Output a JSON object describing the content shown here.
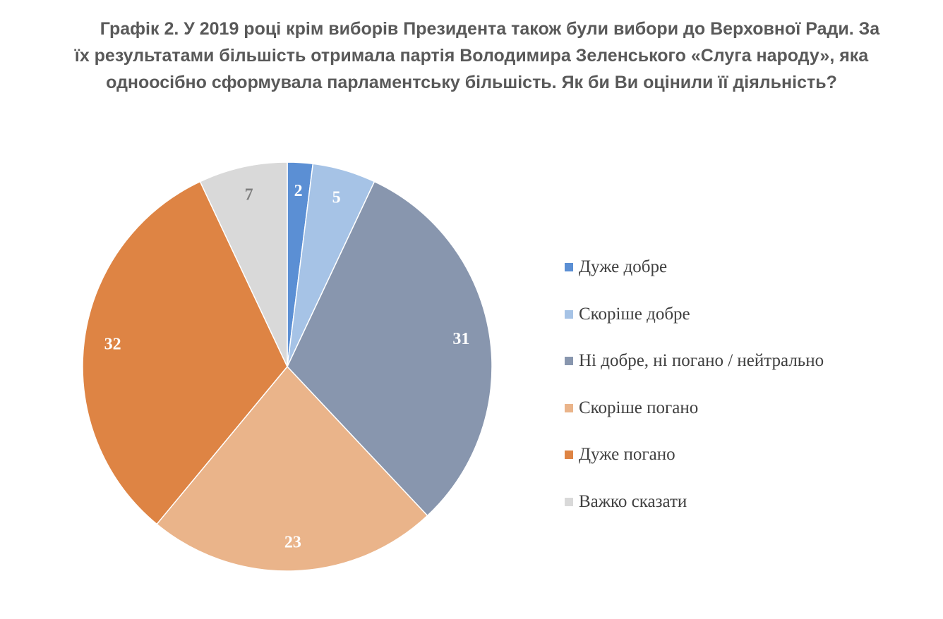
{
  "title": {
    "line1": "Графік 2. У 2019 році крім виборів Президента також були вибори до Верховної Ради. За",
    "line2": "їх результатами більшість отримала партія Володимира Зеленського «Слуга народу», яка",
    "line3": "одноосібно сформувала парламентську більшість. Як би Ви оцінили її діяльність?"
  },
  "chart_data": {
    "type": "pie",
    "categories": [
      "Дуже добре",
      "Скоріше добре",
      "Ні добре, ні погано / нейтрально",
      "Скоріше погано",
      "Дуже погано",
      "Важко сказати"
    ],
    "values": [
      2,
      5,
      31,
      23,
      32,
      7
    ],
    "colors": [
      "#5b8fd4",
      "#a6c3e6",
      "#8896ae",
      "#eab48a",
      "#de8444",
      "#d9d9d9"
    ],
    "label_colors": [
      "#ffffff",
      "#ffffff",
      "#ffffff",
      "#ffffff",
      "#ffffff",
      "#7f7f7f"
    ],
    "legend_position": "right",
    "start_angle": "top, clockwise"
  }
}
